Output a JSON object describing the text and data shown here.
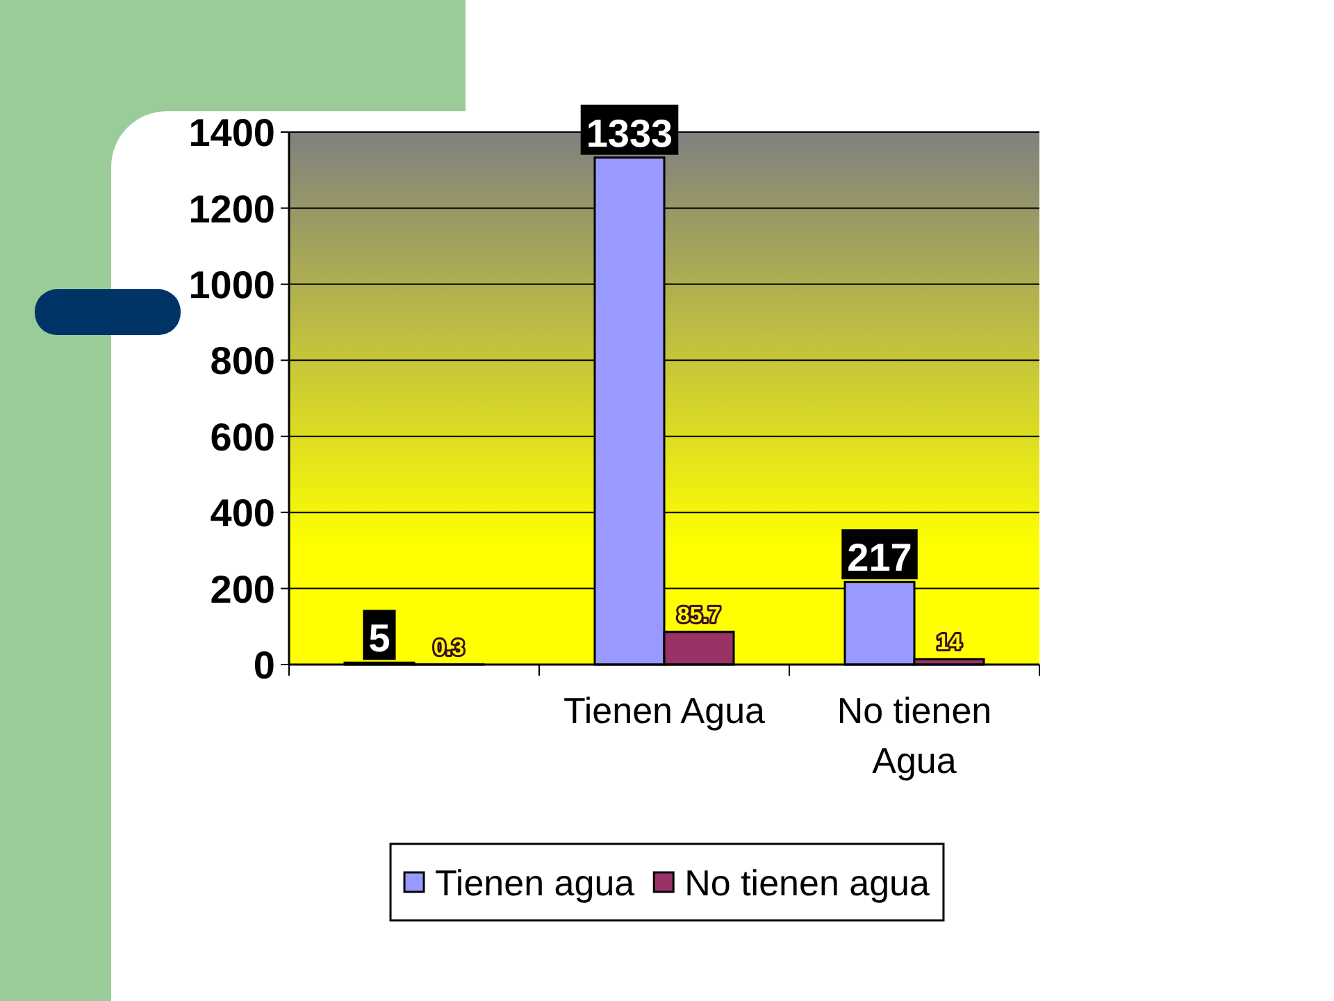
{
  "chart_data": {
    "type": "bar",
    "categories": [
      null,
      "Tienen Agua",
      "No tienen Agua"
    ],
    "series": [
      {
        "name": "Tienen agua",
        "color": "#9999ff",
        "values": [
          5,
          1333,
          217
        ]
      },
      {
        "name": "No tienen agua",
        "color": "#993366",
        "values": [
          0.3,
          85.7,
          14
        ]
      }
    ],
    "ylim": [
      0,
      1400
    ],
    "yticks": [
      0,
      200,
      400,
      600,
      800,
      1000,
      1200,
      1400
    ],
    "grid": "y",
    "legend": "bottom",
    "data_labels": true
  }
}
